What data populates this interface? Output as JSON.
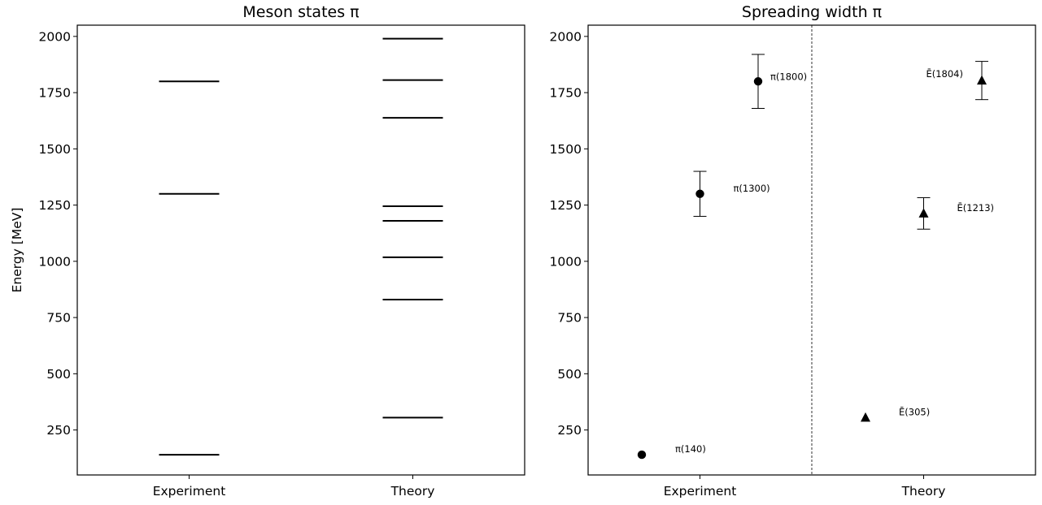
{
  "chart_data": [
    {
      "type": "levels",
      "title": "Meson states π",
      "ylabel": "Energy [MeV]",
      "ylim": [
        50,
        2050
      ],
      "yticks": [
        250,
        500,
        750,
        1000,
        1250,
        1500,
        1750,
        2000
      ],
      "categories": [
        "Experiment",
        "Theory"
      ],
      "levels": {
        "Experiment": [
          140,
          1300,
          1800
        ],
        "Theory": [
          305,
          830,
          1018,
          1180,
          1245,
          1638,
          1806,
          1990
        ]
      },
      "color": "#000000"
    },
    {
      "type": "errorbar-scatter",
      "title": "Spreading width π",
      "ylim": [
        50,
        2050
      ],
      "yticks": [
        250,
        500,
        750,
        1000,
        1250,
        1500,
        1750,
        2000
      ],
      "categories": [
        "Experiment",
        "Theory"
      ],
      "divider": "dashed",
      "series": [
        {
          "group": "Experiment",
          "marker": "circle",
          "points": [
            {
              "offset": -0.2,
              "y": 140,
              "err": 0,
              "label": "π(140)"
            },
            {
              "offset": 0.0,
              "y": 1300,
              "err": 100,
              "label": "π(1300)"
            },
            {
              "offset": 0.2,
              "y": 1800,
              "err": 120,
              "label": "π(1800)"
            }
          ]
        },
        {
          "group": "Theory",
          "marker": "triangle",
          "points": [
            {
              "offset": -0.2,
              "y": 305,
              "err": 0,
              "label": "Ē(305)"
            },
            {
              "offset": 0.0,
              "y": 1213,
              "err": 70,
              "label": "Ē(1213)"
            },
            {
              "offset": 0.2,
              "y": 1804,
              "err": 85,
              "label": "Ē(1804)"
            }
          ]
        }
      ],
      "color": "#000000"
    }
  ]
}
